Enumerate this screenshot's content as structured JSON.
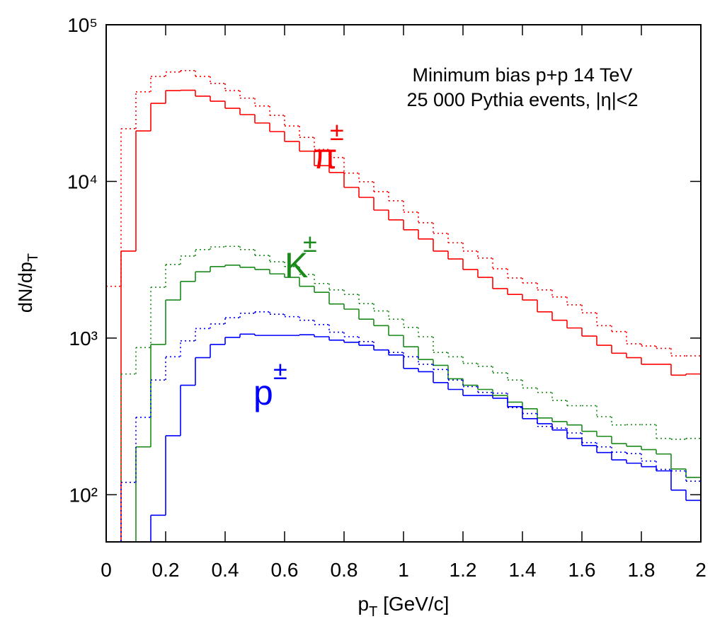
{
  "chart_data": {
    "type": "histogram",
    "annotations": [
      "Minimum bias p+p 14 TeV",
      "25 000 Pythia events, |η|<2"
    ],
    "labels": [
      {
        "text": "π",
        "sup": "±",
        "color": "#ff0000"
      },
      {
        "text": "K",
        "sup": "±",
        "color": "#1a8a1a"
      },
      {
        "text": "p",
        "sup": "±",
        "color": "#0000ff"
      }
    ],
    "xlabel": {
      "text": "p",
      "sub": "T",
      "rest": " [GeV/c]"
    },
    "ylabel": {
      "text": "dN/dp",
      "sub": "T"
    },
    "xlim": [
      0,
      2
    ],
    "ylim": [
      50,
      100000
    ],
    "log_y": true,
    "xticks": [
      0,
      0.2,
      0.4,
      0.6,
      0.8,
      1,
      1.2,
      1.4,
      1.6,
      1.8,
      2
    ],
    "yticks": [
      {
        "value": 100,
        "label": "10²"
      },
      {
        "value": 1000,
        "label": "10³"
      },
      {
        "value": 10000,
        "label": "10⁴"
      },
      {
        "value": 100000,
        "label": "10⁵"
      }
    ],
    "bins": [
      0,
      0.05,
      0.1,
      0.15,
      0.2,
      0.25,
      0.3,
      0.35,
      0.4,
      0.45,
      0.5,
      0.55,
      0.6,
      0.65,
      0.7,
      0.75,
      0.8,
      0.85,
      0.9,
      0.95,
      1,
      1.05,
      1.1,
      1.15,
      1.2,
      1.25,
      1.3,
      1.35,
      1.4,
      1.45,
      1.5,
      1.55,
      1.6,
      1.65,
      1.7,
      1.75,
      1.8,
      1.85,
      1.9,
      1.95,
      2
    ],
    "series": [
      {
        "color": "#ff0000",
        "style": "solid",
        "values": [
          null,
          3590,
          21000,
          31500,
          38000,
          38200,
          35000,
          32500,
          29300,
          26700,
          23600,
          20800,
          18000,
          15600,
          12600,
          11400,
          9160,
          7910,
          6560,
          5680,
          4910,
          4290,
          3590,
          3200,
          2740,
          2440,
          2070,
          1900,
          1750,
          1470,
          1300,
          1160,
          1030,
          900,
          800,
          750,
          680,
          680,
          580,
          590
        ]
      },
      {
        "color": "#ff0000",
        "style": "dotted",
        "values": [
          2140,
          21700,
          37300,
          46800,
          49900,
          51000,
          46800,
          42200,
          38000,
          34000,
          30300,
          26400,
          22600,
          19100,
          16000,
          14200,
          11300,
          9950,
          8600,
          7520,
          6370,
          5450,
          4660,
          4060,
          3590,
          3240,
          2770,
          2420,
          2250,
          2030,
          1830,
          1630,
          1450,
          1200,
          1100,
          920,
          890,
          860,
          770,
          770
        ]
      },
      {
        "color": "#1a8a1a",
        "style": "solid",
        "values": [
          null,
          null,
          202,
          910,
          1750,
          2300,
          2650,
          2860,
          2920,
          2830,
          2740,
          2570,
          2440,
          2140,
          1960,
          1650,
          1530,
          1320,
          1200,
          1040,
          880,
          730,
          670,
          550,
          500,
          470,
          430,
          390,
          354,
          309,
          293,
          279,
          254,
          236,
          212,
          204,
          194,
          182,
          146,
          129
        ]
      },
      {
        "color": "#1a8a1a",
        "style": "dotted",
        "values": [
          null,
          590,
          870,
          2110,
          2950,
          3340,
          3670,
          3820,
          3850,
          3670,
          3370,
          3070,
          2860,
          2550,
          2230,
          2030,
          1900,
          1660,
          1490,
          1320,
          1170,
          1020,
          810,
          760,
          690,
          660,
          600,
          540,
          480,
          450,
          400,
          370,
          370,
          315,
          279,
          280,
          280,
          229,
          226,
          229
        ]
      },
      {
        "color": "#0000ff",
        "style": "solid",
        "values": [
          null,
          null,
          null,
          74,
          238,
          500,
          750,
          910,
          1010,
          1060,
          1040,
          1040,
          1040,
          1050,
          1020,
          970,
          940,
          900,
          840,
          780,
          640,
          610,
          520,
          470,
          430,
          430,
          413,
          365,
          306,
          284,
          259,
          229,
          206,
          186,
          167,
          159,
          151,
          142,
          107,
          92
        ]
      },
      {
        "color": "#0000ff",
        "style": "dotted",
        "values": [
          null,
          120,
          312,
          540,
          760,
          960,
          1150,
          1230,
          1350,
          1440,
          1470,
          1420,
          1370,
          1300,
          1220,
          1090,
          1020,
          950,
          840,
          810,
          760,
          680,
          630,
          540,
          490,
          450,
          445,
          360,
          330,
          273,
          266,
          248,
          215,
          202,
          187,
          183,
          164,
          145,
          142,
          122
        ]
      }
    ]
  }
}
